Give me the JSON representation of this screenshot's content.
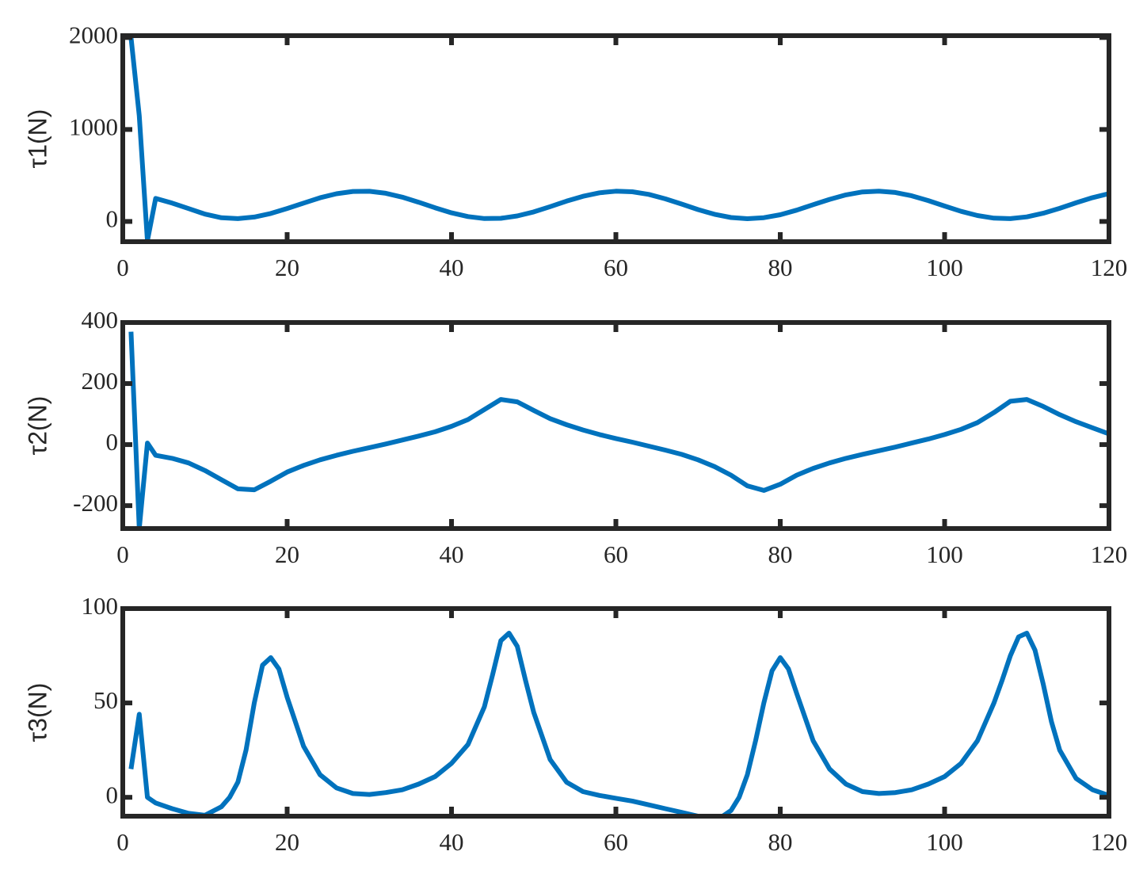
{
  "chart_data": [
    {
      "type": "line",
      "ylabel": "τ1(N)",
      "color": "#0072BD",
      "xlim": [
        0,
        120
      ],
      "xticks": [
        0,
        20,
        40,
        60,
        80,
        100,
        120
      ],
      "ylim": [
        -220,
        2020
      ],
      "yticks": [
        0,
        1000,
        2000
      ],
      "x": [
        1,
        2,
        3,
        4,
        6,
        8,
        10,
        12,
        14,
        16,
        18,
        20,
        22,
        24,
        26,
        28,
        30,
        32,
        34,
        36,
        38,
        40,
        42,
        44,
        46,
        48,
        50,
        52,
        54,
        56,
        58,
        60,
        62,
        64,
        66,
        68,
        70,
        72,
        74,
        76,
        78,
        80,
        82,
        84,
        86,
        88,
        90,
        92,
        94,
        96,
        98,
        100,
        102,
        104,
        106,
        108,
        110,
        112,
        114,
        116,
        118,
        120
      ],
      "values": [
        2000,
        1150,
        -210,
        250,
        200,
        140,
        80,
        40,
        31,
        48,
        87,
        141,
        200,
        257,
        301,
        326,
        328,
        306,
        264,
        209,
        149,
        94,
        53,
        32,
        34,
        60,
        104,
        161,
        221,
        274,
        312,
        329,
        323,
        294,
        246,
        189,
        129,
        78,
        43,
        30,
        41,
        73,
        123,
        182,
        240,
        289,
        321,
        330,
        315,
        279,
        227,
        168,
        110,
        64,
        36,
        31,
        50,
        89,
        143,
        203,
        259,
        303
      ]
    },
    {
      "type": "line",
      "ylabel": "τ2(N)",
      "color": "#0072BD",
      "xlim": [
        0,
        120
      ],
      "xticks": [
        0,
        20,
        40,
        60,
        80,
        100,
        120
      ],
      "ylim": [
        -275,
        400
      ],
      "yticks": [
        -200,
        0,
        200,
        400
      ],
      "x": [
        1,
        2,
        3,
        4,
        6,
        8,
        10,
        12,
        14,
        16,
        18,
        20,
        22,
        24,
        26,
        28,
        30,
        32,
        34,
        36,
        38,
        40,
        42,
        44,
        46,
        48,
        50,
        52,
        54,
        56,
        58,
        60,
        62,
        64,
        66,
        68,
        70,
        72,
        74,
        76,
        78,
        80,
        82,
        84,
        86,
        88,
        90,
        92,
        94,
        96,
        98,
        100,
        102,
        104,
        106,
        108,
        110,
        112,
        114,
        116,
        118,
        120
      ],
      "values": [
        370,
        -275,
        5,
        -35,
        -45,
        -60,
        -85,
        -115,
        -145,
        -148,
        -120,
        -90,
        -68,
        -50,
        -35,
        -22,
        -10,
        2,
        15,
        28,
        42,
        60,
        82,
        115,
        148,
        140,
        112,
        85,
        65,
        48,
        33,
        20,
        8,
        -5,
        -18,
        -32,
        -50,
        -72,
        -100,
        -135,
        -150,
        -130,
        -100,
        -78,
        -60,
        -45,
        -32,
        -20,
        -8,
        5,
        18,
        33,
        50,
        72,
        105,
        142,
        148,
        125,
        98,
        75,
        55,
        35
      ]
    },
    {
      "type": "line",
      "ylabel": "τ3(N)",
      "color": "#0072BD",
      "xlim": [
        0,
        120
      ],
      "xticks": [
        0,
        20,
        40,
        60,
        80,
        100,
        120
      ],
      "ylim": [
        -10,
        100
      ],
      "yticks": [
        0,
        50,
        100
      ],
      "x": [
        1,
        2,
        3,
        4,
        6,
        8,
        10,
        12,
        13,
        14,
        15,
        16,
        17,
        18,
        19,
        20,
        22,
        24,
        26,
        28,
        30,
        32,
        34,
        36,
        38,
        40,
        42,
        44,
        45,
        46,
        47,
        48,
        49,
        50,
        52,
        54,
        56,
        58,
        60,
        62,
        64,
        66,
        68,
        70,
        72,
        73,
        74,
        75,
        76,
        77,
        78,
        79,
        80,
        81,
        82,
        84,
        86,
        88,
        90,
        92,
        94,
        96,
        98,
        100,
        102,
        104,
        106,
        107,
        108,
        109,
        110,
        111,
        112,
        113,
        114,
        116,
        118,
        120
      ],
      "values": [
        15,
        44,
        0,
        -3,
        -6,
        -8.5,
        -9.5,
        -5,
        0,
        8,
        25,
        50,
        70,
        74,
        68,
        53,
        27,
        12,
        5,
        2,
        1.5,
        2.5,
        4,
        7,
        11,
        18,
        28,
        48,
        65,
        83,
        87,
        80,
        62,
        45,
        20,
        8,
        3,
        1,
        -0.5,
        -2,
        -4,
        -6,
        -8,
        -10,
        -11,
        -10,
        -7,
        0,
        12,
        30,
        50,
        67,
        74,
        68,
        55,
        30,
        15,
        7,
        3,
        2,
        2.5,
        4,
        7,
        11,
        18,
        30,
        50,
        62,
        75,
        85,
        87,
        78,
        60,
        40,
        25,
        10,
        4,
        1
      ]
    }
  ]
}
